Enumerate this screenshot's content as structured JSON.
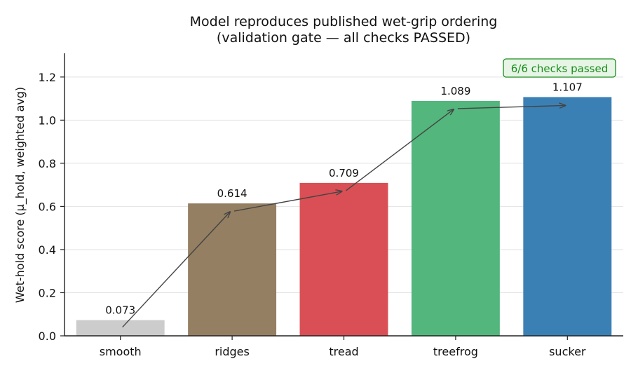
{
  "chart_data": {
    "type": "bar",
    "title_line1": "Model reproduces published wet-grip ordering",
    "title_line2": "(validation gate — all checks PASSED)",
    "ylabel": "Wet-hold score (μ_hold, weighted avg)",
    "xlabel": "",
    "categories": [
      "smooth",
      "ridges",
      "tread",
      "treefrog",
      "sucker"
    ],
    "values": [
      0.073,
      0.614,
      0.709,
      1.089,
      1.107
    ],
    "value_labels": [
      "0.073",
      "0.614",
      "0.709",
      "1.089",
      "1.107"
    ],
    "colors": [
      "#cccccc",
      "#957f62",
      "#d94f55",
      "#52b67d",
      "#3b80b4"
    ],
    "ylim": [
      0,
      1.31
    ],
    "yticks": [
      0.0,
      0.2,
      0.4,
      0.6,
      0.8,
      1.0,
      1.2
    ],
    "ytick_labels": [
      "0.0",
      "0.2",
      "0.4",
      "0.6",
      "0.8",
      "1.0",
      "1.2"
    ],
    "grid": "horizontal",
    "trend_arrows": true,
    "badge": {
      "text": "6/6 checks passed",
      "position": "top-right",
      "color": "#1a8c1a",
      "fill": "#e6f5e6"
    }
  }
}
